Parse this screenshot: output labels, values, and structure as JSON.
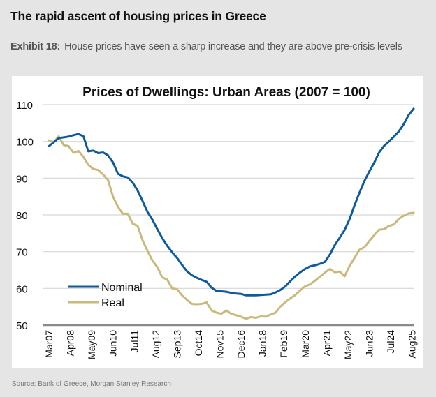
{
  "header": {
    "title": "The rapid ascent of housing prices in Greece",
    "exhibit_label": "Exhibit 18:",
    "exhibit_text": "House prices have seen a sharp increase and they are above pre-crisis levels"
  },
  "footer": {
    "source": "Source: Bank of Greece, Morgan Stanley Research"
  },
  "colors": {
    "nominal": "#0f5a9c",
    "real": "#c9b97a",
    "grid": "#d6d6d6",
    "axis": "#8a8a8a"
  },
  "chart_data": {
    "type": "line",
    "title": "Prices of Dwellings: Urban Areas (2007 = 100)",
    "xlabel": "",
    "ylabel": "",
    "ylim": [
      50,
      110
    ],
    "yticks": [
      50,
      60,
      70,
      80,
      90,
      100,
      110
    ],
    "grid": true,
    "legend_position": "bottom-left",
    "x_tick_labels": [
      "Mar07",
      "Apr08",
      "May09",
      "Jun10",
      "Jul11",
      "Aug12",
      "Sep13",
      "Oct14",
      "Nov15",
      "Dec16",
      "Jan18",
      "Feb19",
      "Mar20",
      "Apr21",
      "May22",
      "Jun23",
      "Jul24",
      "Aug25"
    ],
    "x_tick_interval_months": 13,
    "x_start": "Mar07",
    "x_step_months": 3,
    "series": [
      {
        "name": "Nominal",
        "values": [
          98.7,
          99.8,
          100.9,
          101.1,
          101.3,
          101.7,
          102.0,
          101.4,
          97.3,
          97.5,
          96.8,
          97.0,
          96.2,
          94.3,
          91.2,
          90.5,
          90.2,
          88.8,
          86.6,
          83.8,
          80.8,
          78.7,
          76.1,
          73.7,
          71.6,
          69.8,
          68.3,
          66.4,
          64.7,
          63.6,
          62.9,
          62.3,
          61.8,
          60.2,
          59.3,
          59.2,
          59.1,
          58.8,
          58.6,
          58.5,
          58.1,
          58.1,
          58.1,
          58.2,
          58.3,
          58.4,
          58.9,
          59.6,
          60.6,
          62.0,
          63.3,
          64.4,
          65.3,
          66.0,
          66.3,
          66.7,
          67.2,
          69.2,
          71.8,
          73.8,
          75.9,
          78.8,
          82.6,
          86.0,
          89.2,
          91.8,
          94.2,
          97.0,
          98.8,
          100.0,
          101.3,
          102.7,
          104.7,
          107.2,
          108.9
        ]
      },
      {
        "name": "Real",
        "values": [
          100.3,
          99.8,
          101.4,
          99.0,
          98.7,
          96.9,
          97.4,
          95.8,
          93.6,
          92.5,
          92.2,
          91.0,
          89.5,
          85.0,
          82.2,
          80.3,
          80.3,
          77.6,
          77.0,
          73.1,
          70.2,
          67.6,
          65.8,
          63.0,
          62.4,
          60.0,
          59.8,
          58.1,
          56.9,
          55.8,
          55.7,
          55.8,
          56.2,
          54.0,
          53.4,
          53.1,
          54.0,
          53.1,
          52.7,
          52.3,
          51.7,
          52.2,
          52.0,
          52.4,
          52.3,
          52.9,
          53.4,
          55.1,
          56.3,
          57.3,
          58.2,
          59.5,
          60.6,
          61.1,
          62.1,
          63.2,
          64.3,
          65.3,
          64.4,
          64.6,
          63.3,
          66.1,
          68.3,
          70.5,
          71.2,
          72.9,
          74.5,
          76.0,
          76.1,
          77.0,
          77.4,
          78.9,
          79.8,
          80.4,
          80.6
        ]
      }
    ]
  }
}
